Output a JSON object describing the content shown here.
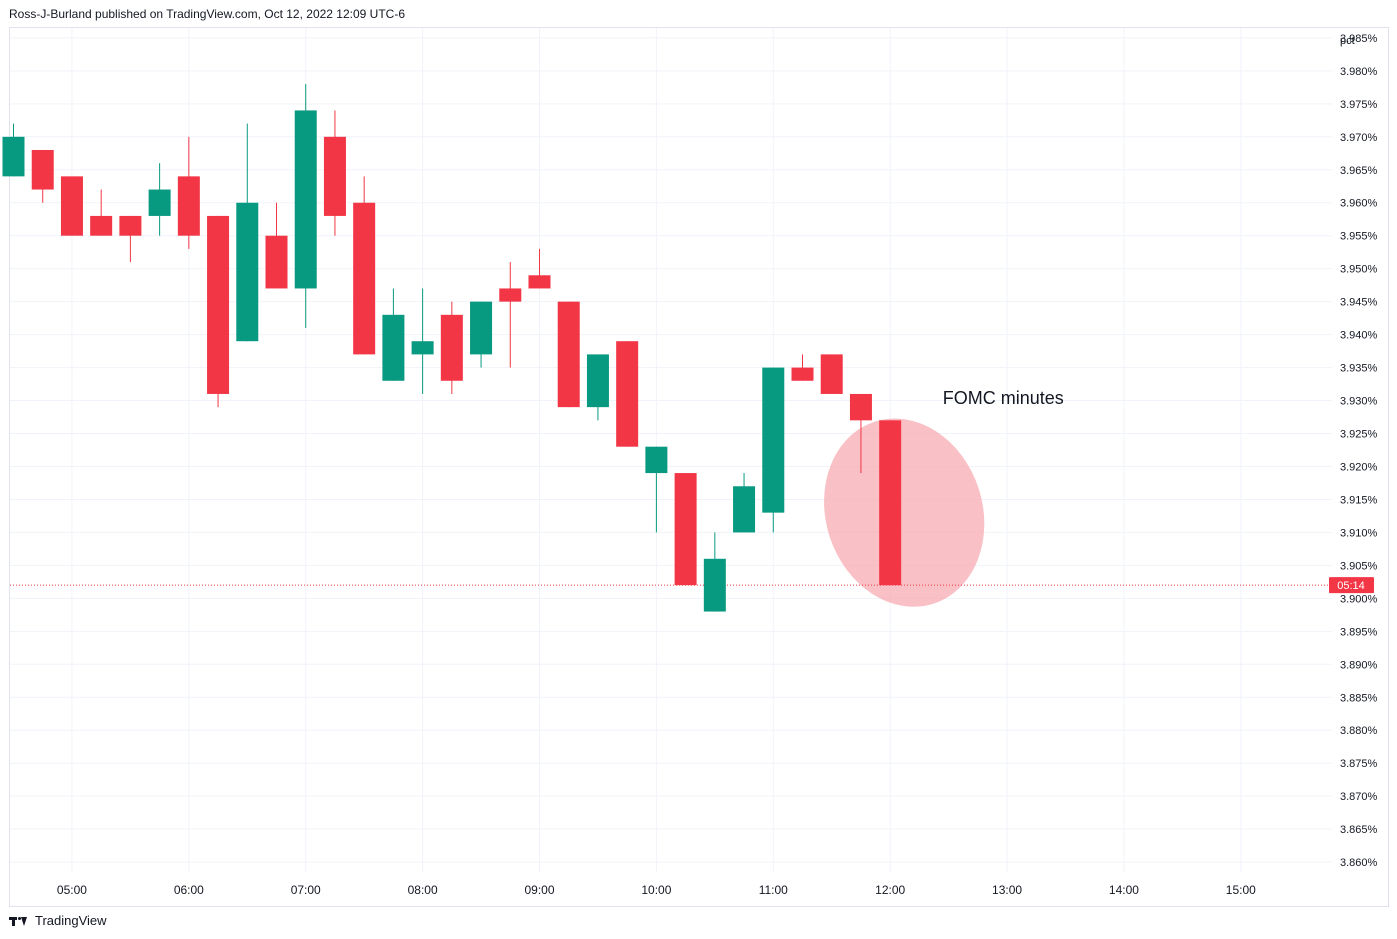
{
  "header": {
    "published_text": "Ross-J-Burland published on TradingView.com, Oct 12, 2022 12:09 UTC-6"
  },
  "footer": {
    "brand": "TradingView"
  },
  "colors": {
    "up": "#089981",
    "down": "#f23645",
    "grid": "#f0f3fa",
    "axis_text": "#131722",
    "price_line": "#f23645",
    "highlight": "#f7a5ad"
  },
  "chart_data": {
    "type": "candlestick",
    "unit_label": "pct",
    "y_ticks": [
      "3.985%",
      "3.980%",
      "3.975%",
      "3.970%",
      "3.965%",
      "3.960%",
      "3.955%",
      "3.950%",
      "3.945%",
      "3.940%",
      "3.935%",
      "3.930%",
      "3.925%",
      "3.920%",
      "3.915%",
      "3.910%",
      "3.905%",
      "3.900%",
      "3.895%",
      "3.890%",
      "3.885%",
      "3.880%",
      "3.875%",
      "3.870%",
      "3.865%",
      "3.860%"
    ],
    "ylim": [
      3.8585,
      3.9865
    ],
    "x_ticks": [
      "05:00",
      "06:00",
      "07:00",
      "08:00",
      "09:00",
      "10:00",
      "11:00",
      "12:00",
      "13:00",
      "14:00",
      "15:00"
    ],
    "x_tick_hours": [
      5,
      6,
      7,
      8,
      9,
      10,
      11,
      12,
      13,
      14,
      15
    ],
    "xlim_hours": [
      4.47,
      15.78
    ],
    "current_value": 3.902,
    "countdown": "05:14",
    "candles": [
      {
        "t": 4.5,
        "o": 3.964,
        "h": 3.972,
        "l": 3.964,
        "c": 3.97
      },
      {
        "t": 4.75,
        "o": 3.968,
        "h": 3.968,
        "l": 3.96,
        "c": 3.962
      },
      {
        "t": 5.0,
        "o": 3.964,
        "h": 3.964,
        "l": 3.955,
        "c": 3.955
      },
      {
        "t": 5.25,
        "o": 3.958,
        "h": 3.962,
        "l": 3.955,
        "c": 3.955
      },
      {
        "t": 5.5,
        "o": 3.958,
        "h": 3.958,
        "l": 3.951,
        "c": 3.955
      },
      {
        "t": 5.75,
        "o": 3.958,
        "h": 3.966,
        "l": 3.955,
        "c": 3.962
      },
      {
        "t": 6.0,
        "o": 3.964,
        "h": 3.97,
        "l": 3.953,
        "c": 3.955
      },
      {
        "t": 6.25,
        "o": 3.958,
        "h": 3.958,
        "l": 3.929,
        "c": 3.931
      },
      {
        "t": 6.5,
        "o": 3.939,
        "h": 3.972,
        "l": 3.939,
        "c": 3.96
      },
      {
        "t": 6.75,
        "o": 3.955,
        "h": 3.96,
        "l": 3.947,
        "c": 3.947
      },
      {
        "t": 7.0,
        "o": 3.947,
        "h": 3.978,
        "l": 3.941,
        "c": 3.974
      },
      {
        "t": 7.25,
        "o": 3.97,
        "h": 3.974,
        "l": 3.955,
        "c": 3.958
      },
      {
        "t": 7.5,
        "o": 3.96,
        "h": 3.964,
        "l": 3.937,
        "c": 3.937
      },
      {
        "t": 7.75,
        "o": 3.933,
        "h": 3.947,
        "l": 3.933,
        "c": 3.943
      },
      {
        "t": 8.0,
        "o": 3.937,
        "h": 3.947,
        "l": 3.931,
        "c": 3.939
      },
      {
        "t": 8.25,
        "o": 3.943,
        "h": 3.945,
        "l": 3.931,
        "c": 3.933
      },
      {
        "t": 8.5,
        "o": 3.937,
        "h": 3.945,
        "l": 3.935,
        "c": 3.945
      },
      {
        "t": 8.75,
        "o": 3.947,
        "h": 3.951,
        "l": 3.935,
        "c": 3.945
      },
      {
        "t": 9.0,
        "o": 3.949,
        "h": 3.953,
        "l": 3.947,
        "c": 3.947
      },
      {
        "t": 9.25,
        "o": 3.945,
        "h": 3.945,
        "l": 3.929,
        "c": 3.929
      },
      {
        "t": 9.5,
        "o": 3.929,
        "h": 3.937,
        "l": 3.927,
        "c": 3.937
      },
      {
        "t": 9.75,
        "o": 3.939,
        "h": 3.939,
        "l": 3.923,
        "c": 3.923
      },
      {
        "t": 10.0,
        "o": 3.919,
        "h": 3.923,
        "l": 3.91,
        "c": 3.923
      },
      {
        "t": 10.25,
        "o": 3.919,
        "h": 3.919,
        "l": 3.902,
        "c": 3.902
      },
      {
        "t": 10.5,
        "o": 3.898,
        "h": 3.91,
        "l": 3.898,
        "c": 3.906
      },
      {
        "t": 10.75,
        "o": 3.91,
        "h": 3.919,
        "l": 3.91,
        "c": 3.917
      },
      {
        "t": 11.0,
        "o": 3.913,
        "h": 3.935,
        "l": 3.91,
        "c": 3.935
      },
      {
        "t": 11.25,
        "o": 3.935,
        "h": 3.937,
        "l": 3.933,
        "c": 3.933
      },
      {
        "t": 11.5,
        "o": 3.937,
        "h": 3.937,
        "l": 3.931,
        "c": 3.931
      },
      {
        "t": 11.75,
        "o": 3.931,
        "h": 3.931,
        "l": 3.919,
        "c": 3.927
      },
      {
        "t": 12.0,
        "o": 3.927,
        "h": 3.927,
        "l": 3.902,
        "c": 3.902
      }
    ],
    "annotations": [
      {
        "text": "FOMC minutes",
        "t": 12.45,
        "value": 3.9295
      }
    ],
    "highlight_ellipse": {
      "t_center": 12.12,
      "value_center": 3.913,
      "t_radius": 0.67,
      "value_radius": 0.0145
    }
  }
}
